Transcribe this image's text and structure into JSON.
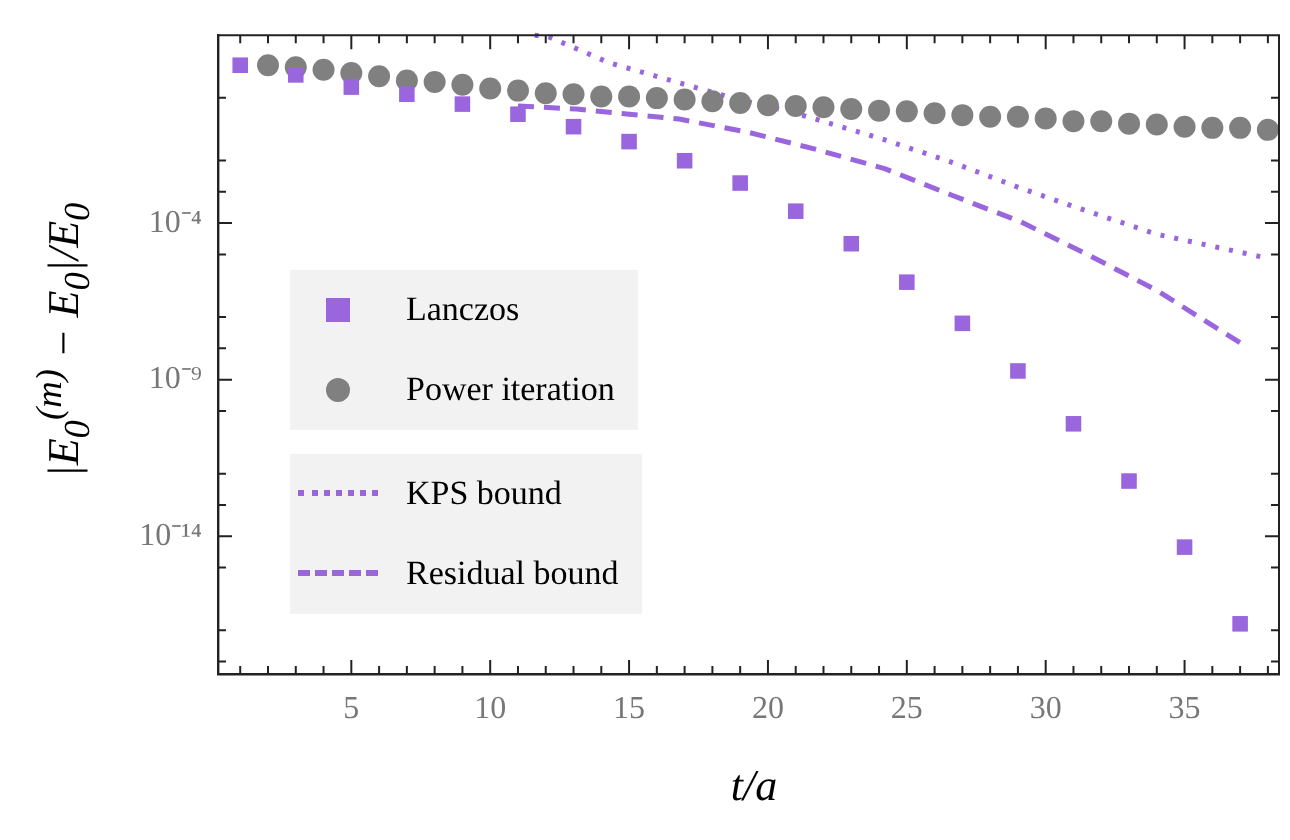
{
  "chart_data": {
    "type": "scatter",
    "xlabel": "t/a",
    "ylabel": "|E$_{0}$$^{(m)}$ − E$_{0}$|/E$_{0}$",
    "log": "y",
    "xlim": [
      0.2,
      38.4
    ],
    "ylim": [
      4e-19,
      100
    ],
    "xticks": [
      {
        "value": 1,
        "label": null
      },
      {
        "value": 2,
        "label": null
      },
      {
        "value": 3,
        "label": null
      },
      {
        "value": 4,
        "label": null
      },
      5,
      {
        "value": 6,
        "label": null
      },
      {
        "value": 7,
        "label": null
      },
      {
        "value": 8,
        "label": null
      },
      {
        "value": 9,
        "label": null
      },
      10,
      {
        "value": 11,
        "label": null
      },
      {
        "value": 12,
        "label": null
      },
      {
        "value": 13,
        "label": null
      },
      {
        "value": 14,
        "label": null
      },
      15,
      {
        "value": 16,
        "label": null
      },
      {
        "value": 17,
        "label": null
      },
      {
        "value": 18,
        "label": null
      },
      {
        "value": 19,
        "label": null
      },
      20,
      {
        "value": 21,
        "label": null
      },
      {
        "value": 22,
        "label": null
      },
      {
        "value": 23,
        "label": null
      },
      {
        "value": 24,
        "label": null
      },
      25,
      {
        "value": 26,
        "label": null
      },
      {
        "value": 27,
        "label": null
      },
      {
        "value": 28,
        "label": null
      },
      {
        "value": 29,
        "label": null
      },
      30,
      {
        "value": 31,
        "label": null
      },
      {
        "value": 32,
        "label": null
      },
      {
        "value": 33,
        "label": null
      },
      {
        "value": 34,
        "label": null
      },
      35,
      {
        "value": 36,
        "label": null
      },
      {
        "value": 37,
        "label": null
      },
      {
        "value": 38,
        "label": null
      }
    ],
    "yticks": [
      {
        "value": 1,
        "label": null
      },
      {
        "value": 0.01,
        "label": null
      },
      {
        "value": 0.001,
        "label": null
      },
      {
        "value": 0.0001,
        "label": "10⁻⁴"
      },
      {
        "value": 1e-05,
        "label": null
      },
      {
        "value": 1e-07,
        "label": null
      },
      {
        "value": 1e-08,
        "label": null
      },
      {
        "value": 1e-09,
        "label": "10⁻⁹"
      },
      {
        "value": 1e-10,
        "label": null
      },
      {
        "value": 1e-12,
        "label": null
      },
      {
        "value": 1e-13,
        "label": null
      },
      {
        "value": 1e-14,
        "label": "10⁻¹⁴"
      },
      {
        "value": 1e-15,
        "label": null
      },
      {
        "value": 1e-17,
        "label": null
      },
      {
        "value": 1e-18,
        "label": null
      }
    ],
    "grid": false,
    "legend": "left",
    "series": [
      {
        "name": "Lanczos",
        "type": "scatter",
        "marker": "square",
        "color": "#9966dd",
        "x": [
          1,
          3,
          5,
          7,
          9,
          11,
          13,
          15,
          17,
          19,
          21,
          23,
          25,
          27,
          29,
          31,
          33,
          35,
          37
        ],
        "values": [
          11,
          5.4,
          2.2,
          1.3,
          0.63,
          0.3,
          0.12,
          0.04,
          0.0098,
          0.0019,
          0.00024,
          2.2e-05,
          1.3e-06,
          6.3e-08,
          1.9e-09,
          3.9e-11,
          5.8e-13,
          4.5e-15,
          1.6e-17
        ]
      },
      {
        "name": "Power iteration",
        "type": "scatter",
        "marker": "circle",
        "color": "#808080",
        "x": [
          2,
          3,
          4,
          5,
          6,
          7,
          8,
          9,
          10,
          11,
          12,
          13,
          14,
          15,
          16,
          17,
          18,
          19,
          20,
          21,
          22,
          23,
          24,
          25,
          26,
          27,
          28,
          29,
          30,
          31,
          32,
          33,
          34,
          35,
          36,
          37,
          38
        ],
        "values": [
          11,
          9.5,
          7.9,
          6.2,
          4.9,
          3.6,
          3.2,
          2.6,
          2,
          1.7,
          1.4,
          1.3,
          1.1,
          1.1,
          0.98,
          0.89,
          0.78,
          0.68,
          0.58,
          0.55,
          0.5,
          0.44,
          0.39,
          0.37,
          0.32,
          0.28,
          0.25,
          0.25,
          0.22,
          0.18,
          0.18,
          0.15,
          0.14,
          0.12,
          0.11,
          0.11,
          0.095
        ]
      },
      {
        "name": "KPS bound",
        "type": "line",
        "line_style": "dotted",
        "marker": "none",
        "color": "#9966dd",
        "x": [
          11.6,
          12.1,
          14.3,
          18.7,
          20.9,
          24.1,
          26.6,
          29.1,
          31.5,
          34,
          37.9
        ],
        "values": [
          100,
          89,
          13,
          1,
          0.34,
          0.049,
          0.0089,
          0.0013,
          0.00024,
          4.4e-05,
          7.9e-06
        ]
      },
      {
        "name": "Residual bound",
        "type": "line",
        "line_style": "dashed",
        "marker": "none",
        "color": "#9966dd",
        "x": [
          11,
          13.1,
          16.8,
          19.3,
          21.7,
          24.2,
          26.6,
          29.1,
          31.5,
          34,
          37
        ],
        "values": [
          0.55,
          0.44,
          0.21,
          0.079,
          0.023,
          0.0055,
          0.00079,
          0.00011,
          1e-05,
          7.1e-07,
          1.5e-08
        ]
      }
    ]
  }
}
